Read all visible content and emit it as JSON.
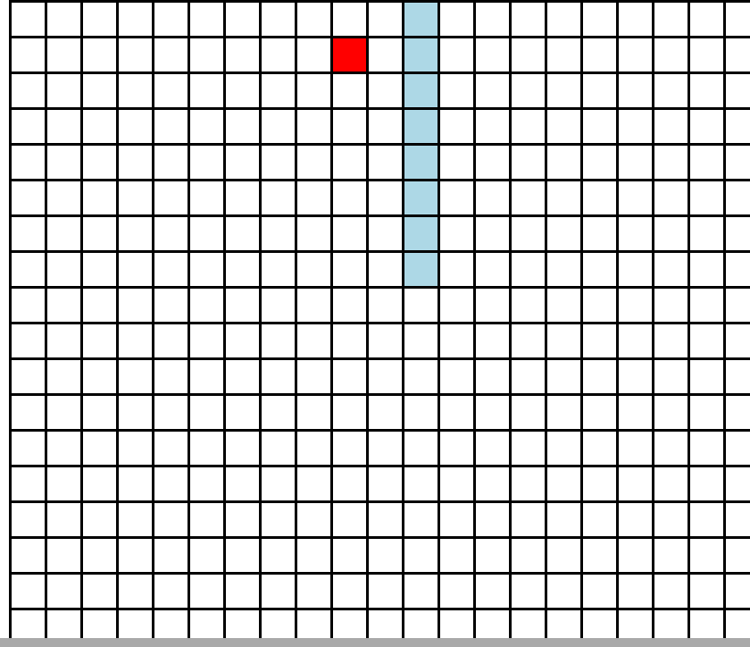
{
  "board": {
    "columns": 21,
    "rows": 18,
    "colors": {
      "empty": "#ffffff",
      "grid_line": "#000000",
      "food": "#ff0000",
      "snake": "#add8e6",
      "bottom_bar": "#a9a9a9"
    },
    "food": {
      "col": 9,
      "row": 1
    },
    "snake": [
      {
        "col": 11,
        "row": 0
      },
      {
        "col": 11,
        "row": 1
      },
      {
        "col": 11,
        "row": 2
      },
      {
        "col": 11,
        "row": 3
      },
      {
        "col": 11,
        "row": 4
      },
      {
        "col": 11,
        "row": 5
      },
      {
        "col": 11,
        "row": 6
      },
      {
        "col": 11,
        "row": 7
      }
    ]
  }
}
